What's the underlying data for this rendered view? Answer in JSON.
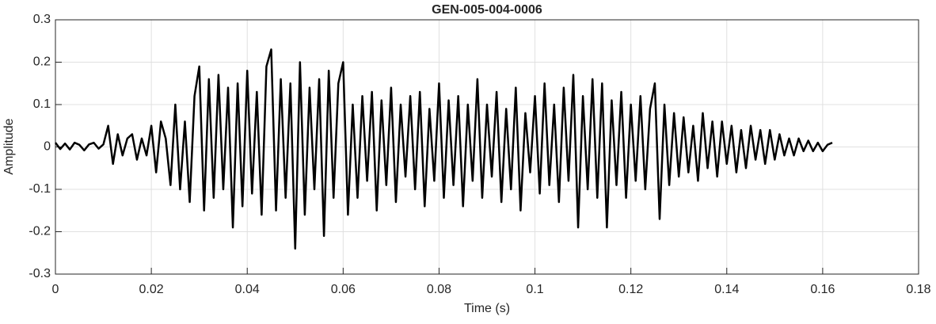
{
  "chart_data": {
    "type": "line",
    "title": "GEN-005-004-0006",
    "x_label": "Time (s)",
    "y_label": "Amplitude",
    "xlim": [
      0,
      0.18
    ],
    "ylim": [
      -0.3,
      0.3
    ],
    "xticks": [
      0,
      0.02,
      0.04,
      0.06,
      0.08,
      0.1,
      0.12,
      0.14,
      0.16,
      0.18
    ],
    "yticks": [
      -0.3,
      -0.2,
      -0.1,
      0,
      0.1,
      0.2,
      0.3
    ],
    "grid": true,
    "x": [
      0,
      0.001,
      0.002,
      0.003,
      0.004,
      0.005,
      0.006,
      0.007,
      0.008,
      0.009,
      0.01,
      0.011,
      0.012,
      0.013,
      0.014,
      0.015,
      0.016,
      0.017,
      0.018,
      0.019,
      0.02,
      0.021,
      0.022,
      0.023,
      0.024,
      0.025,
      0.026,
      0.027,
      0.028,
      0.029,
      0.03,
      0.031,
      0.032,
      0.033,
      0.034,
      0.035,
      0.036,
      0.037,
      0.038,
      0.039,
      0.04,
      0.041,
      0.042,
      0.043,
      0.044,
      0.045,
      0.046,
      0.047,
      0.048,
      0.049,
      0.05,
      0.051,
      0.052,
      0.053,
      0.054,
      0.055,
      0.056,
      0.057,
      0.058,
      0.059,
      0.06,
      0.061,
      0.062,
      0.063,
      0.064,
      0.065,
      0.066,
      0.067,
      0.068,
      0.069,
      0.07,
      0.071,
      0.072,
      0.073,
      0.074,
      0.075,
      0.076,
      0.077,
      0.078,
      0.079,
      0.08,
      0.081,
      0.082,
      0.083,
      0.084,
      0.085,
      0.086,
      0.087,
      0.088,
      0.089,
      0.09,
      0.091,
      0.092,
      0.093,
      0.094,
      0.095,
      0.096,
      0.097,
      0.098,
      0.099,
      0.1,
      0.101,
      0.102,
      0.103,
      0.104,
      0.105,
      0.106,
      0.107,
      0.108,
      0.109,
      0.11,
      0.111,
      0.112,
      0.113,
      0.114,
      0.115,
      0.116,
      0.117,
      0.118,
      0.119,
      0.12,
      0.121,
      0.122,
      0.123,
      0.124,
      0.125,
      0.126,
      0.127,
      0.128,
      0.129,
      0.13,
      0.131,
      0.132,
      0.133,
      0.134,
      0.135,
      0.136,
      0.137,
      0.138,
      0.139,
      0.14,
      0.141,
      0.142,
      0.143,
      0.144,
      0.145,
      0.146,
      0.147,
      0.148,
      0.149,
      0.15,
      0.151,
      0.152,
      0.153,
      0.154,
      0.155,
      0.156,
      0.157,
      0.158,
      0.159,
      0.16,
      0.161,
      0.162
    ],
    "series": [
      {
        "color": "#000000",
        "values": [
          0.01,
          -0.005,
          0.008,
          -0.006,
          0.01,
          0.005,
          -0.008,
          0.006,
          0.01,
          -0.004,
          0.006,
          0.05,
          -0.04,
          0.03,
          -0.02,
          0.02,
          0.03,
          -0.03,
          0.02,
          -0.02,
          0.05,
          -0.06,
          0.06,
          0.02,
          -0.09,
          0.1,
          -0.1,
          0.06,
          -0.13,
          0.12,
          0.19,
          -0.15,
          0.16,
          -0.12,
          0.17,
          -0.1,
          0.14,
          -0.19,
          0.15,
          -0.14,
          0.18,
          -0.11,
          0.13,
          -0.16,
          0.19,
          0.23,
          -0.15,
          0.16,
          -0.12,
          0.15,
          -0.24,
          0.2,
          -0.16,
          0.14,
          -0.1,
          0.16,
          -0.21,
          0.18,
          -0.12,
          0.15,
          0.2,
          -0.16,
          0.1,
          -0.12,
          0.12,
          -0.08,
          0.13,
          -0.15,
          0.11,
          -0.09,
          0.14,
          -0.13,
          0.1,
          -0.07,
          0.12,
          -0.1,
          0.13,
          -0.14,
          0.09,
          -0.08,
          0.15,
          -0.12,
          0.11,
          -0.09,
          0.12,
          -0.14,
          0.1,
          -0.08,
          0.16,
          -0.12,
          0.1,
          -0.07,
          0.13,
          -0.13,
          0.09,
          -0.1,
          0.14,
          -0.15,
          0.08,
          -0.06,
          0.12,
          -0.11,
          0.15,
          -0.09,
          0.1,
          -0.13,
          0.14,
          -0.08,
          0.17,
          -0.19,
          0.12,
          -0.1,
          0.16,
          -0.12,
          0.15,
          -0.19,
          0.11,
          -0.09,
          0.13,
          -0.12,
          0.1,
          -0.08,
          0.12,
          -0.1,
          0.09,
          0.15,
          -0.17,
          0.1,
          -0.09,
          0.08,
          -0.07,
          0.07,
          -0.06,
          0.05,
          -0.08,
          0.08,
          -0.05,
          0.06,
          -0.07,
          0.06,
          -0.04,
          0.05,
          -0.06,
          0.04,
          -0.05,
          0.05,
          -0.03,
          0.04,
          -0.04,
          0.04,
          -0.03,
          0.03,
          -0.02,
          0.02,
          -0.02,
          0.02,
          -0.01,
          0.015,
          -0.01,
          0.01,
          -0.01,
          0.005,
          0.01
        ]
      }
    ]
  }
}
